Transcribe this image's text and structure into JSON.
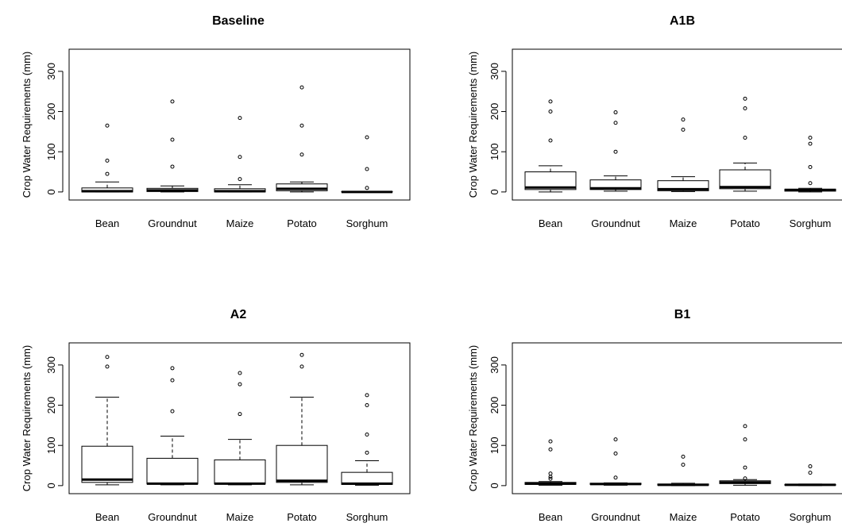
{
  "chart_data": [
    {
      "type": "box",
      "title": "Baseline",
      "xlabel": "",
      "ylabel": "Crop Water Requirements (mm)",
      "ylim": [
        -20,
        355
      ],
      "yticks": [
        0,
        100,
        200,
        300
      ],
      "categories": [
        "Bean",
        "Groundnut",
        "Maize",
        "Potato",
        "Sorghum"
      ],
      "boxes": [
        {
          "lower_whisker": 0,
          "q1": 0,
          "median": 2,
          "q3": 10,
          "upper_whisker": 25,
          "outliers": [
            45,
            78,
            165
          ]
        },
        {
          "lower_whisker": 0,
          "q1": 1,
          "median": 4,
          "q3": 9,
          "upper_whisker": 15,
          "outliers": [
            63,
            130,
            225
          ]
        },
        {
          "lower_whisker": 0,
          "q1": 0,
          "median": 2,
          "q3": 8,
          "upper_whisker": 18,
          "outliers": [
            32,
            87,
            184
          ]
        },
        {
          "lower_whisker": 0,
          "q1": 3,
          "median": 8,
          "q3": 20,
          "upper_whisker": 25,
          "outliers": [
            93,
            165,
            260
          ]
        },
        {
          "lower_whisker": 0,
          "q1": 0,
          "median": 0,
          "q3": 1,
          "upper_whisker": 1,
          "outliers": [
            10,
            57,
            136
          ]
        }
      ]
    },
    {
      "type": "box",
      "title": "A1B",
      "xlabel": "",
      "ylabel": "Crop Water Requirements (mm)",
      "ylim": [
        -20,
        355
      ],
      "yticks": [
        0,
        100,
        200,
        300
      ],
      "categories": [
        "Bean",
        "Groundnut",
        "Maize",
        "Potato",
        "Sorghum"
      ],
      "boxes": [
        {
          "lower_whisker": 0,
          "q1": 6,
          "median": 11,
          "q3": 50,
          "upper_whisker": 65,
          "outliers": [
            128,
            200,
            225
          ]
        },
        {
          "lower_whisker": 2,
          "q1": 6,
          "median": 9,
          "q3": 30,
          "upper_whisker": 40,
          "outliers": [
            100,
            172,
            198
          ]
        },
        {
          "lower_whisker": 1,
          "q1": 3,
          "median": 7,
          "q3": 28,
          "upper_whisker": 38,
          "outliers": [
            155,
            180
          ]
        },
        {
          "lower_whisker": 2,
          "q1": 8,
          "median": 12,
          "q3": 55,
          "upper_whisker": 72,
          "outliers": [
            135,
            208,
            232
          ]
        },
        {
          "lower_whisker": 0,
          "q1": 2,
          "median": 5,
          "q3": 7,
          "upper_whisker": 9,
          "outliers": [
            22,
            62,
            120,
            135
          ]
        }
      ]
    },
    {
      "type": "box",
      "title": "A2",
      "xlabel": "",
      "ylabel": "Crop Water Requirements (mm)",
      "ylim": [
        -20,
        355
      ],
      "yticks": [
        0,
        100,
        200,
        300
      ],
      "categories": [
        "Bean",
        "Groundnut",
        "Maize",
        "Potato",
        "Sorghum"
      ],
      "boxes": [
        {
          "lower_whisker": 2,
          "q1": 8,
          "median": 15,
          "q3": 98,
          "upper_whisker": 220,
          "outliers": [
            296,
            320
          ]
        },
        {
          "lower_whisker": 2,
          "q1": 4,
          "median": 5,
          "q3": 68,
          "upper_whisker": 123,
          "outliers": [
            185,
            262,
            292
          ]
        },
        {
          "lower_whisker": 2,
          "q1": 4,
          "median": 5,
          "q3": 64,
          "upper_whisker": 115,
          "outliers": [
            178,
            252,
            280
          ]
        },
        {
          "lower_whisker": 2,
          "q1": 8,
          "median": 12,
          "q3": 100,
          "upper_whisker": 220,
          "outliers": [
            296,
            325
          ]
        },
        {
          "lower_whisker": 1,
          "q1": 3,
          "median": 5,
          "q3": 33,
          "upper_whisker": 62,
          "outliers": [
            82,
            127,
            200,
            225
          ]
        }
      ]
    },
    {
      "type": "box",
      "title": "B1",
      "xlabel": "",
      "ylabel": "Crop Water Requirements (mm)",
      "ylim": [
        -20,
        355
      ],
      "yticks": [
        0,
        100,
        200,
        300
      ],
      "categories": [
        "Bean",
        "Groundnut",
        "Maize",
        "Potato",
        "Sorghum"
      ],
      "boxes": [
        {
          "lower_whisker": 1,
          "q1": 3,
          "median": 5,
          "q3": 8,
          "upper_whisker": 10,
          "outliers": [
            17,
            22,
            30,
            90,
            110
          ]
        },
        {
          "lower_whisker": 1,
          "q1": 3,
          "median": 4,
          "q3": 6,
          "upper_whisker": 7,
          "outliers": [
            20,
            80,
            115
          ]
        },
        {
          "lower_whisker": 0,
          "q1": 1,
          "median": 2,
          "q3": 4,
          "upper_whisker": 6,
          "outliers": [
            52,
            72
          ]
        },
        {
          "lower_whisker": 1,
          "q1": 5,
          "median": 8,
          "q3": 12,
          "upper_whisker": 15,
          "outliers": [
            18,
            45,
            115,
            148
          ]
        },
        {
          "lower_whisker": 0,
          "q1": 1,
          "median": 2,
          "q3": 3,
          "upper_whisker": 4,
          "outliers": [
            32,
            48
          ]
        }
      ]
    }
  ]
}
